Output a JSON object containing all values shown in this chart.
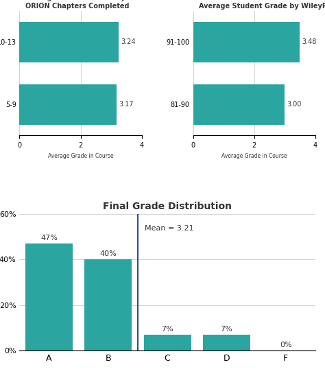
{
  "orion_labels": [
    "5-9",
    "10-13"
  ],
  "orion_values": [
    3.17,
    3.24
  ],
  "orion_title": "Average Student Grade by\nORION Chapters Completed",
  "orion_xlabel": "Average Grade in Course",
  "wiley_labels": [
    "81-90",
    "91-100"
  ],
  "wiley_values": [
    3.0,
    3.48
  ],
  "wiley_title": "Average Student Grade by WileyPLUS",
  "wiley_xlabel": "Average Grade in Course",
  "bar_color": "#2aa5a0",
  "grade_categories": [
    "A",
    "B",
    "C",
    "D",
    "F"
  ],
  "grade_values": [
    47,
    40,
    7,
    7,
    0
  ],
  "grade_title": "Final Grade Distribution",
  "mean_label": "Mean = 3.21",
  "vline_x": 1.5,
  "bg_color": "#ffffff",
  "text_color": "#333333",
  "grid_color": "#cccccc",
  "vline_color": "#2d4f8e",
  "xlim_bar": [
    0,
    4
  ],
  "ylim_grade": [
    0,
    60
  ],
  "yticks_grade": [
    0,
    20,
    40,
    60
  ],
  "ytick_labels_grade": [
    "0%",
    "20%",
    "40%",
    "60%"
  ]
}
